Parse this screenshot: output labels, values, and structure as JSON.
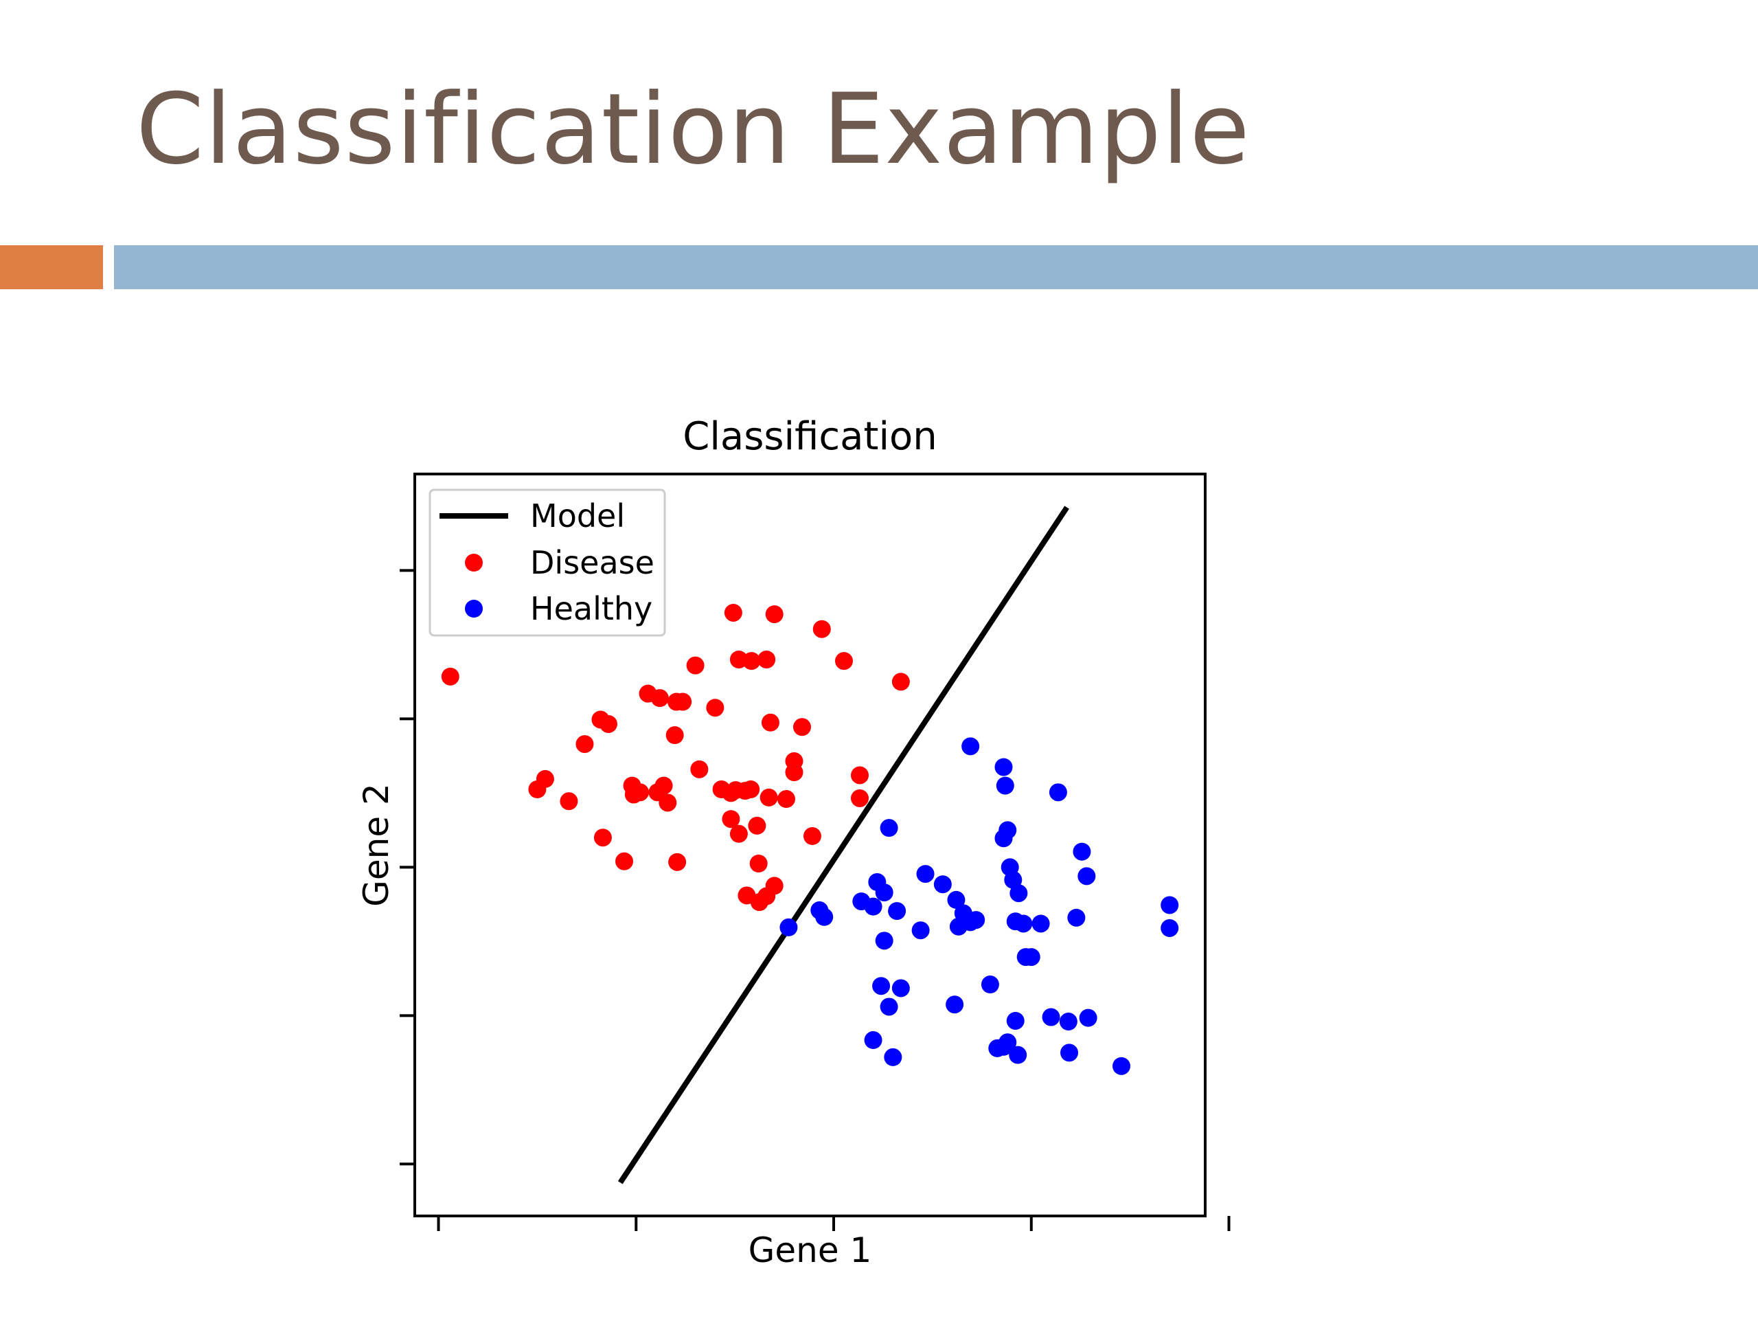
{
  "slide": {
    "title": "Classification Example",
    "title_color": "#6f5a4f",
    "accent_left_color": "#df7f44",
    "accent_right_color": "#94b6d3"
  },
  "chart_data": {
    "type": "scatter",
    "title": "Classification",
    "xlabel": "Gene 1",
    "ylabel": "Gene 2",
    "xlim": [
      0,
      100
    ],
    "ylim": [
      0,
      100
    ],
    "x_ticks": [
      3,
      28,
      53,
      78,
      103
    ],
    "y_ticks": [
      7,
      27,
      47,
      67,
      87
    ],
    "grid": false,
    "legend_position": "top-left",
    "legend": [
      {
        "label": "Model",
        "kind": "line",
        "color": "#000000"
      },
      {
        "label": "Disease",
        "kind": "marker",
        "color": "#ff0000"
      },
      {
        "label": "Healthy",
        "kind": "marker",
        "color": "#0000ff"
      }
    ],
    "model_line": {
      "name": "Model",
      "color": "#000000",
      "x": [
        26,
        82.5
      ],
      "y": [
        4.5,
        95.5
      ]
    },
    "series": [
      {
        "name": "Disease",
        "color": "#ff0000",
        "points": [
          [
            4.5,
            72.7
          ],
          [
            15.5,
            57.5
          ],
          [
            16.5,
            58.9
          ],
          [
            19.5,
            55.9
          ],
          [
            21.5,
            63.6
          ],
          [
            23.5,
            66.9
          ],
          [
            24.5,
            66.3
          ],
          [
            23.8,
            51.0
          ],
          [
            26.5,
            47.8
          ],
          [
            27.5,
            58.0
          ],
          [
            28.5,
            57.1
          ],
          [
            27.7,
            56.8
          ],
          [
            30.7,
            57.1
          ],
          [
            31.5,
            58.0
          ],
          [
            32.0,
            55.7
          ],
          [
            29.5,
            70.4
          ],
          [
            31.0,
            69.8
          ],
          [
            33.1,
            69.3
          ],
          [
            32.9,
            64.8
          ],
          [
            33.9,
            69.3
          ],
          [
            35.5,
            74.2
          ],
          [
            33.2,
            47.7
          ],
          [
            36.0,
            60.2
          ],
          [
            38.0,
            68.5
          ],
          [
            38.8,
            57.5
          ],
          [
            40.0,
            57.0
          ],
          [
            41.0,
            75.0
          ],
          [
            40.6,
            57.4
          ],
          [
            41.8,
            57.3
          ],
          [
            42.6,
            74.8
          ],
          [
            43.3,
            52.6
          ],
          [
            40.3,
            81.3
          ],
          [
            44.5,
            75.0
          ],
          [
            45.0,
            66.5
          ],
          [
            44.8,
            56.4
          ],
          [
            45.5,
            81.1
          ],
          [
            42.5,
            57.5
          ],
          [
            40.0,
            53.5
          ],
          [
            41.0,
            51.5
          ],
          [
            43.5,
            47.5
          ],
          [
            42.0,
            43.2
          ],
          [
            43.6,
            42.3
          ],
          [
            44.5,
            43.1
          ],
          [
            45.5,
            44.5
          ],
          [
            47.0,
            56.2
          ],
          [
            48.0,
            61.3
          ],
          [
            49.0,
            65.9
          ],
          [
            48.0,
            59.8
          ],
          [
            51.5,
            79.1
          ],
          [
            54.3,
            74.8
          ],
          [
            50.3,
            51.2
          ],
          [
            56.3,
            59.4
          ],
          [
            56.3,
            56.3
          ],
          [
            61.5,
            72.0
          ]
        ]
      },
      {
        "name": "Healthy",
        "color": "#0000ff",
        "points": [
          [
            47.3,
            38.9
          ],
          [
            51.2,
            41.2
          ],
          [
            51.8,
            40.3
          ],
          [
            56.5,
            42.4
          ],
          [
            58.0,
            41.7
          ],
          [
            59.4,
            43.6
          ],
          [
            58.5,
            45.0
          ],
          [
            60.0,
            52.3
          ],
          [
            59.4,
            37.1
          ],
          [
            61.0,
            41.1
          ],
          [
            64.6,
            46.1
          ],
          [
            64.0,
            38.5
          ],
          [
            61.5,
            30.7
          ],
          [
            59.0,
            31.0
          ],
          [
            60.0,
            28.2
          ],
          [
            58.0,
            23.7
          ],
          [
            60.5,
            21.4
          ],
          [
            66.8,
            44.7
          ],
          [
            68.5,
            42.6
          ],
          [
            68.8,
            39.0
          ],
          [
            70.3,
            39.6
          ],
          [
            69.4,
            40.8
          ],
          [
            71.0,
            39.9
          ],
          [
            70.3,
            63.3
          ],
          [
            68.3,
            28.5
          ],
          [
            72.8,
            31.2
          ],
          [
            74.7,
            58.0
          ],
          [
            74.5,
            60.5
          ],
          [
            75.0,
            52.0
          ],
          [
            74.5,
            50.9
          ],
          [
            75.3,
            47.0
          ],
          [
            76.0,
            39.7
          ],
          [
            75.7,
            45.3
          ],
          [
            76.4,
            43.5
          ],
          [
            77.0,
            39.4
          ],
          [
            77.3,
            34.9
          ],
          [
            76.0,
            26.3
          ],
          [
            75.0,
            23.4
          ],
          [
            73.7,
            22.6
          ],
          [
            74.5,
            22.8
          ],
          [
            76.3,
            21.7
          ],
          [
            78.0,
            34.9
          ],
          [
            79.2,
            39.4
          ],
          [
            80.5,
            26.8
          ],
          [
            81.4,
            57.1
          ],
          [
            82.7,
            26.2
          ],
          [
            83.7,
            40.2
          ],
          [
            84.4,
            49.1
          ],
          [
            85.0,
            45.8
          ],
          [
            85.2,
            26.7
          ],
          [
            82.8,
            22.0
          ],
          [
            89.4,
            20.2
          ],
          [
            95.5,
            41.9
          ],
          [
            95.5,
            38.8
          ]
        ]
      }
    ]
  }
}
